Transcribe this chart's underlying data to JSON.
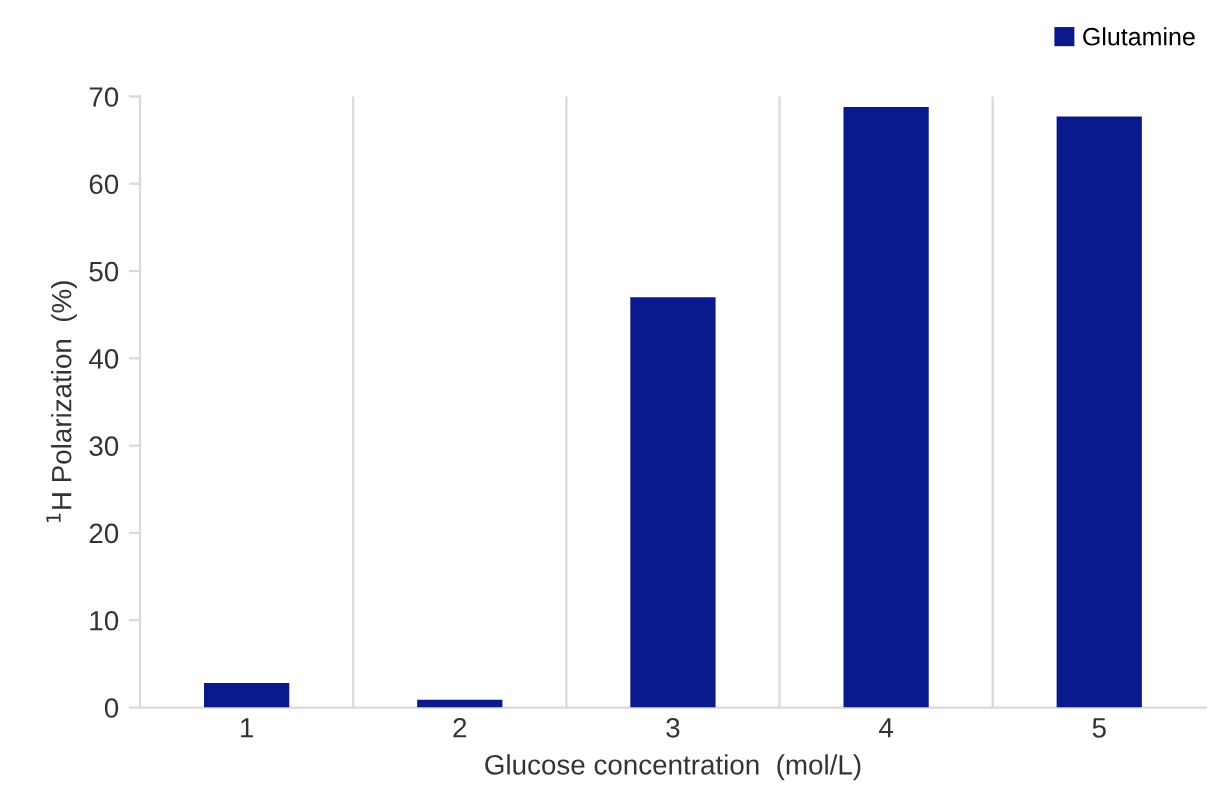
{
  "chart_data": {
    "type": "bar",
    "xlabel": "Glucose concentration  (mol/L)",
    "ylabel": "$^{1}$H Polarization  (%)",
    "categories": [
      "1",
      "2",
      "3",
      "4",
      "5"
    ],
    "series": [
      {
        "name": "Glutamine",
        "color": "#0a1a8c",
        "values": [
          2.8,
          0.9,
          47.0,
          68.8,
          67.7
        ]
      }
    ],
    "ylim": [
      0,
      70
    ],
    "yticks": [
      0,
      10,
      20,
      30,
      40,
      50,
      60,
      70
    ],
    "grid": "x",
    "legend": "top right"
  }
}
